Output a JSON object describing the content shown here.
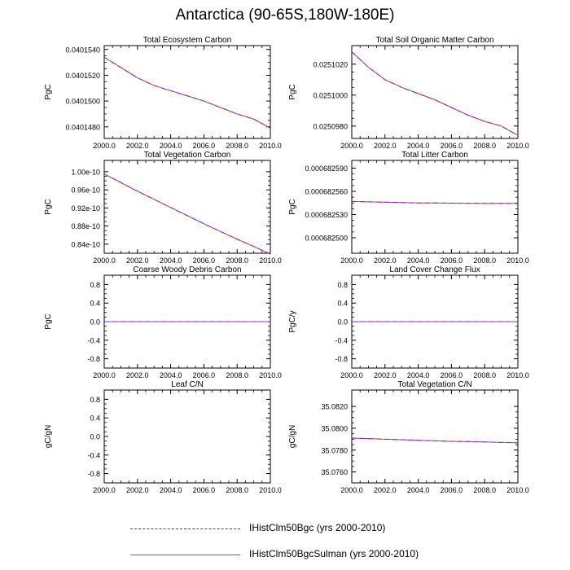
{
  "title": "Antarctica (90-65S,180W-180E)",
  "colors": {
    "series_a": "#3a3aff",
    "series_b": "#ff2a2a",
    "axis": "#000000"
  },
  "legend": [
    {
      "label": "IHistClm50Bgc (yrs 2000-2010)",
      "color": "#3a3aff",
      "style": "dashed"
    },
    {
      "label": "IHistClm50BgcSulman (yrs 2000-2010)",
      "color": "#ff2a2a",
      "style": "solid"
    }
  ],
  "chart_data": [
    {
      "type": "line",
      "title": "Total Ecosystem Carbon",
      "ylabel": "PgC",
      "xlabel": "",
      "xlim": [
        2000,
        2010
      ],
      "ylim": [
        0.0401471,
        0.0401543
      ],
      "xticks": [
        "2000.0",
        "2002.0",
        "2004.0",
        "2006.0",
        "2008.0",
        "2010.0"
      ],
      "yticks": [
        {
          "v": 0.040148,
          "l": "0.0401480"
        },
        {
          "v": 0.04015,
          "l": "0.0401500"
        },
        {
          "v": 0.040152,
          "l": "0.0401520"
        },
        {
          "v": 0.040154,
          "l": "0.0401540"
        }
      ],
      "x": [
        2000,
        2001,
        2002,
        2003,
        2004,
        2005,
        2006,
        2007,
        2008,
        2009,
        2010
      ],
      "series": [
        {
          "name": "IHistClm50Bgc (yrs 2000-2010)",
          "values": [
            0.0401534,
            0.0401526,
            0.0401518,
            0.0401512,
            0.0401508,
            0.0401504,
            0.04015,
            0.0401495,
            0.040149,
            0.0401486,
            0.0401479
          ]
        },
        {
          "name": "IHistClm50BgcSulman (yrs 2000-2010)",
          "values": [
            0.0401534,
            0.0401526,
            0.0401518,
            0.0401512,
            0.0401508,
            0.0401504,
            0.04015,
            0.0401495,
            0.040149,
            0.0401486,
            0.0401479
          ]
        }
      ]
    },
    {
      "type": "line",
      "title": "Total Soil Organic Matter Carbon",
      "ylabel": "PgC",
      "xlabel": "",
      "xlim": [
        2000,
        2010
      ],
      "ylim": [
        0.0250972,
        0.0251032
      ],
      "xticks": [
        "2000.0",
        "2002.0",
        "2004.0",
        "2006.0",
        "2008.0",
        "2010.0"
      ],
      "yticks": [
        {
          "v": 0.025098,
          "l": "0.0250980"
        },
        {
          "v": 0.0251,
          "l": "0.0251000"
        },
        {
          "v": 0.025102,
          "l": "0.0251020"
        }
      ],
      "x": [
        2000,
        2001,
        2002,
        2003,
        2004,
        2005,
        2006,
        2007,
        2008,
        2009,
        2010
      ],
      "series": [
        {
          "name": "IHistClm50Bgc (yrs 2000-2010)",
          "values": [
            0.0251028,
            0.0251018,
            0.025101,
            0.0251005,
            0.0251001,
            0.0250997,
            0.0250992,
            0.0250987,
            0.0250983,
            0.025098,
            0.0250974
          ]
        },
        {
          "name": "IHistClm50BgcSulman (yrs 2000-2010)",
          "values": [
            0.0251028,
            0.0251018,
            0.025101,
            0.0251005,
            0.0251001,
            0.0250997,
            0.0250992,
            0.0250987,
            0.0250983,
            0.025098,
            0.0250974
          ]
        }
      ]
    },
    {
      "type": "line",
      "title": "Total Vegetation Carbon",
      "ylabel": "PgC",
      "xlabel": "",
      "xlim": [
        2000,
        2010
      ],
      "ylim": [
        8.2e-11,
        1.025e-10
      ],
      "xticks": [
        "2000.0",
        "2002.0",
        "2004.0",
        "2006.0",
        "2008.0",
        "2010.0"
      ],
      "yticks": [
        {
          "v": 8.4e-11,
          "l": "0.84e-10"
        },
        {
          "v": 8.8e-11,
          "l": "0.88e-10"
        },
        {
          "v": 9.2e-11,
          "l": "0.92e-10"
        },
        {
          "v": 9.6e-11,
          "l": "0.96e-10"
        },
        {
          "v": 1e-10,
          "l": "1.00e-10"
        }
      ],
      "x": [
        2000,
        2001,
        2002,
        2003,
        2004,
        2005,
        2006,
        2007,
        2008,
        2009,
        2010
      ],
      "series": [
        {
          "name": "IHistClm50Bgc (yrs 2000-2010)",
          "values": [
            9.95e-11,
            9.76e-11,
            9.57e-11,
            9.39e-11,
            9.21e-11,
            9.03e-11,
            8.85e-11,
            8.68e-11,
            8.51e-11,
            8.35e-11,
            8.18e-11
          ]
        },
        {
          "name": "IHistClm50BgcSulman (yrs 2000-2010)",
          "values": [
            9.95e-11,
            9.76e-11,
            9.57e-11,
            9.39e-11,
            9.21e-11,
            9.03e-11,
            8.85e-11,
            8.68e-11,
            8.51e-11,
            8.35e-11,
            8.18e-11
          ]
        }
      ]
    },
    {
      "type": "line",
      "title": "Total Litter Carbon",
      "ylabel": "PgC",
      "xlabel": "",
      "xlim": [
        2000,
        2010
      ],
      "ylim": [
        0.00068248,
        0.0006826
      ],
      "xticks": [
        "2000.0",
        "2002.0",
        "2004.0",
        "2006.0",
        "2008.0",
        "2010.0"
      ],
      "yticks": [
        {
          "v": 0.0006825,
          "l": "0.000682500"
        },
        {
          "v": 0.00068253,
          "l": "0.000682530"
        },
        {
          "v": 0.00068256,
          "l": "0.000682560"
        },
        {
          "v": 0.00068259,
          "l": "0.000682590"
        }
      ],
      "x": [
        2000,
        2001,
        2002,
        2003,
        2004,
        2005,
        2006,
        2007,
        2008,
        2009,
        2010
      ],
      "series": [
        {
          "name": "IHistClm50Bgc (yrs 2000-2010)",
          "values": [
            0.000682547,
            0.0006825465,
            0.000682546,
            0.0006825455,
            0.000682545,
            0.000682545,
            0.0006825448,
            0.0006825446,
            0.0006825445,
            0.0006825445,
            0.0006825445
          ]
        },
        {
          "name": "IHistClm50BgcSulman (yrs 2000-2010)",
          "values": [
            0.000682547,
            0.0006825465,
            0.000682546,
            0.0006825455,
            0.000682545,
            0.000682545,
            0.0006825448,
            0.0006825446,
            0.0006825445,
            0.0006825445,
            0.0006825445
          ]
        }
      ]
    },
    {
      "type": "line",
      "title": "Coarse Woody Debris Carbon",
      "ylabel": "PgC",
      "xlabel": "",
      "xlim": [
        2000,
        2010
      ],
      "ylim": [
        -1.0,
        1.0
      ],
      "xticks": [
        "2000.0",
        "2002.0",
        "2004.0",
        "2006.0",
        "2008.0",
        "2010.0"
      ],
      "yticks": [
        {
          "v": -0.8,
          "l": "-0.8"
        },
        {
          "v": -0.4,
          "l": "-0.4"
        },
        {
          "v": 0.0,
          "l": "0.0"
        },
        {
          "v": 0.4,
          "l": "0.4"
        },
        {
          "v": 0.8,
          "l": "0.8"
        }
      ],
      "x": [
        2000,
        2001,
        2002,
        2003,
        2004,
        2005,
        2006,
        2007,
        2008,
        2009,
        2010
      ],
      "series": [
        {
          "name": "IHistClm50Bgc (yrs 2000-2010)",
          "values": [
            0,
            0,
            0,
            0,
            0,
            0,
            0,
            0,
            0,
            0,
            0
          ]
        },
        {
          "name": "IHistClm50BgcSulman (yrs 2000-2010)",
          "values": [
            0,
            0,
            0,
            0,
            0,
            0,
            0,
            0,
            0,
            0,
            0
          ]
        }
      ]
    },
    {
      "type": "line",
      "title": "Land Cover Change Flux",
      "ylabel": "PgC/y",
      "xlabel": "",
      "xlim": [
        2000,
        2010
      ],
      "ylim": [
        -1.0,
        1.0
      ],
      "xticks": [
        "2000.0",
        "2002.0",
        "2004.0",
        "2006.0",
        "2008.0",
        "2010.0"
      ],
      "yticks": [
        {
          "v": -0.8,
          "l": "-0.8"
        },
        {
          "v": -0.4,
          "l": "-0.4"
        },
        {
          "v": 0.0,
          "l": "0.0"
        },
        {
          "v": 0.4,
          "l": "0.4"
        },
        {
          "v": 0.8,
          "l": "0.8"
        }
      ],
      "x": [
        2000,
        2001,
        2002,
        2003,
        2004,
        2005,
        2006,
        2007,
        2008,
        2009,
        2010
      ],
      "series": [
        {
          "name": "IHistClm50Bgc (yrs 2000-2010)",
          "values": [
            0,
            0,
            0,
            0,
            0,
            0,
            0,
            0,
            0,
            0,
            0
          ]
        },
        {
          "name": "IHistClm50BgcSulman (yrs 2000-2010)",
          "values": [
            0,
            0,
            0,
            0,
            0,
            0,
            0,
            0,
            0,
            0,
            0
          ]
        }
      ]
    },
    {
      "type": "line",
      "title": "Leaf C/N",
      "ylabel": "gC/gN",
      "xlabel": "",
      "xlim": [
        2000,
        2010
      ],
      "ylim": [
        -1.0,
        1.0
      ],
      "xticks": [
        "2000.0",
        "2002.0",
        "2004.0",
        "2006.0",
        "2008.0",
        "2010.0"
      ],
      "yticks": [
        {
          "v": -0.8,
          "l": "-0.8"
        },
        {
          "v": -0.4,
          "l": "-0.4"
        },
        {
          "v": 0.0,
          "l": "0.0"
        },
        {
          "v": 0.4,
          "l": "0.4"
        },
        {
          "v": 0.8,
          "l": "0.8"
        }
      ],
      "x": [],
      "series": []
    },
    {
      "type": "line",
      "title": "Total Vegetation C/N",
      "ylabel": "gC/gN",
      "xlabel": "",
      "xlim": [
        2000,
        2010
      ],
      "ylim": [
        35.075,
        35.0835
      ],
      "xticks": [
        "2000.0",
        "2002.0",
        "2004.0",
        "2006.0",
        "2008.0",
        "2010.0"
      ],
      "yticks": [
        {
          "v": 35.076,
          "l": "35.0760"
        },
        {
          "v": 35.078,
          "l": "35.0780"
        },
        {
          "v": 35.08,
          "l": "35.0800"
        },
        {
          "v": 35.082,
          "l": "35.0820"
        }
      ],
      "x": [
        2000,
        2001,
        2002,
        2003,
        2004,
        2005,
        2006,
        2007,
        2008,
        2009,
        2010
      ],
      "series": [
        {
          "name": "IHistClm50Bgc (yrs 2000-2010)",
          "values": [
            35.0791,
            35.07905,
            35.079,
            35.07895,
            35.0789,
            35.07885,
            35.0788,
            35.07878,
            35.07875,
            35.0787,
            35.07867
          ]
        },
        {
          "name": "IHistClm50BgcSulman (yrs 2000-2010)",
          "values": [
            35.0791,
            35.07905,
            35.079,
            35.07895,
            35.0789,
            35.07885,
            35.0788,
            35.07878,
            35.07875,
            35.0787,
            35.07867
          ]
        }
      ]
    }
  ]
}
